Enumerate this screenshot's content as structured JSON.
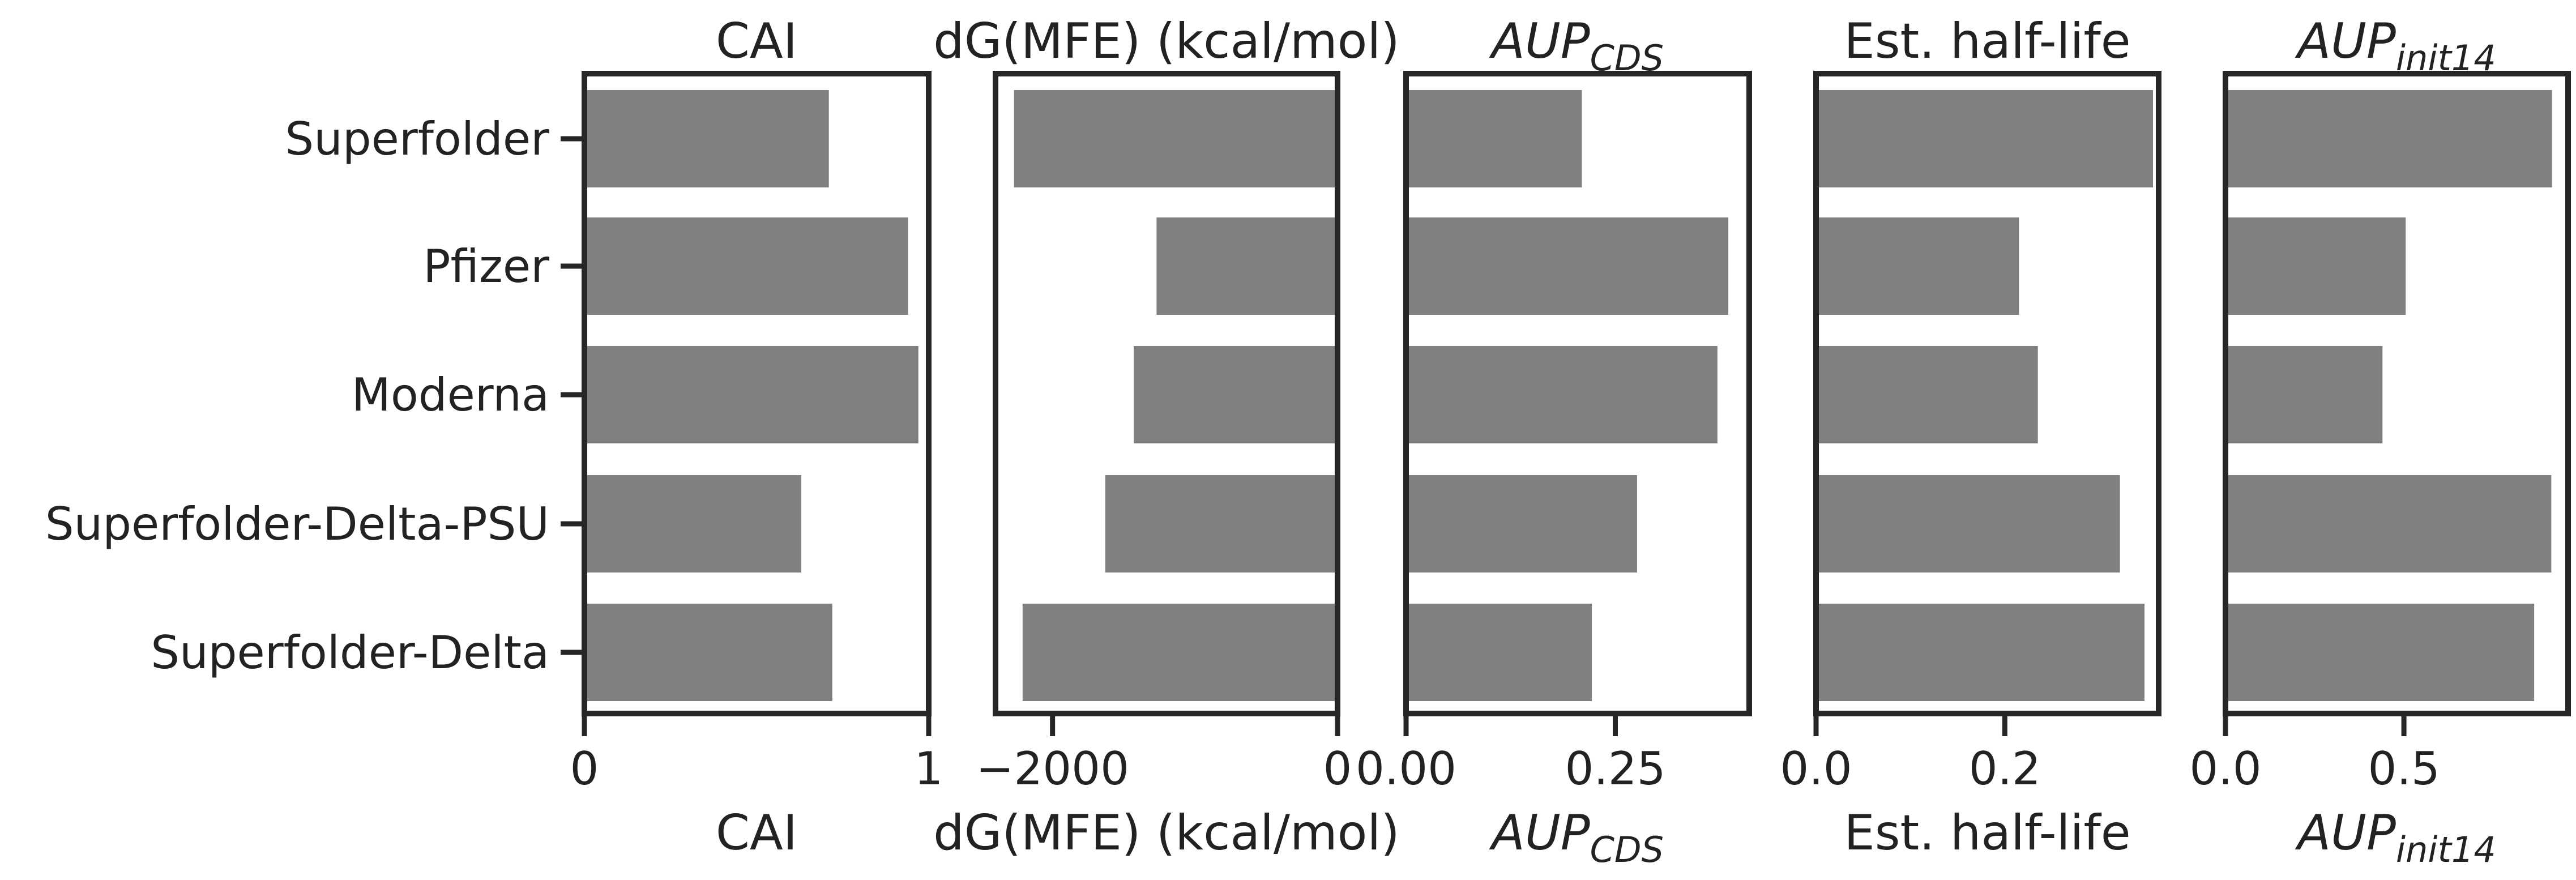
{
  "categories": [
    "Superfolder",
    "Pfizer",
    "Moderna",
    "Superfolder-Delta-PSU",
    "Superfolder-Delta"
  ],
  "bar_color": "#808080",
  "chart_data": [
    {
      "type": "bar",
      "orientation": "horizontal",
      "title": "CAI",
      "xlabel": "CAI",
      "xlim": [
        0,
        1
      ],
      "ticks": [
        0,
        1
      ],
      "tick_labels": [
        "0",
        "1"
      ],
      "values": [
        0.71,
        0.94,
        0.97,
        0.63,
        0.72
      ]
    },
    {
      "type": "bar",
      "orientation": "horizontal",
      "title": "dG(MFE) (kcal/mol)",
      "xlabel": "dG(MFE) (kcal/mol)",
      "xlim": [
        -2400,
        0
      ],
      "ticks": [
        -2000,
        0
      ],
      "tick_labels": [
        "−2000",
        "0"
      ],
      "values": [
        -2270,
        -1270,
        -1430,
        -1630,
        -2210
      ]
    },
    {
      "type": "bar",
      "orientation": "horizontal",
      "title": "AUP_CDS",
      "title_main": "AUP",
      "title_sub": "CDS",
      "xlabel": "AUP_CDS",
      "xlim": [
        0,
        0.41
      ],
      "ticks": [
        0,
        0.25
      ],
      "tick_labels": [
        "0.00",
        "0.25"
      ],
      "values": [
        0.21,
        0.385,
        0.372,
        0.276,
        0.222
      ]
    },
    {
      "type": "bar",
      "orientation": "horizontal",
      "title": "Est. half-life",
      "xlabel": "Est. half-life",
      "xlim": [
        0,
        0.363
      ],
      "ticks": [
        0,
        0.2
      ],
      "tick_labels": [
        "0.0",
        "0.2"
      ],
      "values": [
        0.357,
        0.215,
        0.235,
        0.322,
        0.348
      ]
    },
    {
      "type": "bar",
      "orientation": "horizontal",
      "title": "AUP_init14",
      "title_main": "AUP",
      "title_sub": "init14",
      "xlabel": "AUP_init14",
      "xlim": [
        0,
        0.96
      ],
      "ticks": [
        0,
        0.5
      ],
      "tick_labels": [
        "0.0",
        "0.5"
      ],
      "values": [
        0.915,
        0.505,
        0.44,
        0.913,
        0.865
      ]
    }
  ]
}
